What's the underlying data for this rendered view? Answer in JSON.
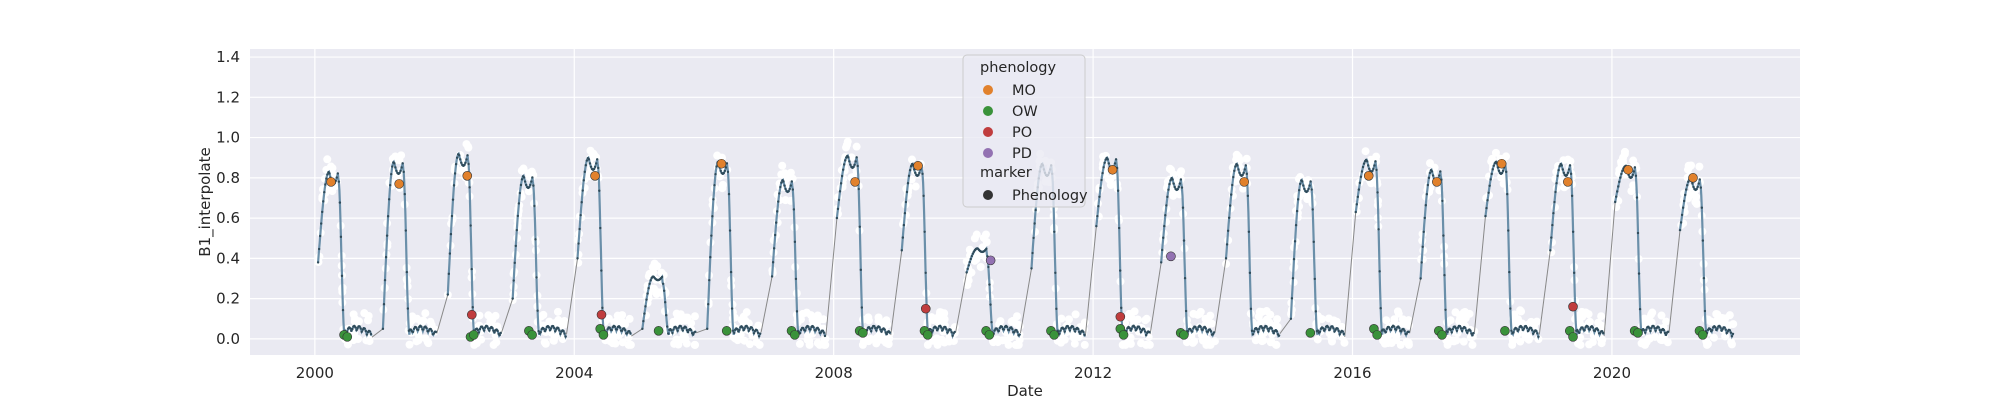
{
  "chart_data": {
    "type": "line",
    "xlabel": "Date",
    "ylabel": "B1_interpolate",
    "xlim": [
      1999.0,
      2022.9
    ],
    "ylim": [
      -0.08,
      1.44
    ],
    "x_ticks": [
      2000,
      2004,
      2008,
      2012,
      2016,
      2020
    ],
    "y_ticks": [
      0.0,
      0.2,
      0.4,
      0.6,
      0.8,
      1.0,
      1.2,
      1.4
    ],
    "grid": true,
    "background": "#eaeaf2",
    "line_color": "#6a8fa9",
    "marker_dot_color": "#2f4b5a",
    "connector_color": "#888888",
    "scatter_color": "#ffffff",
    "legend": {
      "placement": "top-center",
      "title_hue": "phenology",
      "title_marker": "marker",
      "hue_entries": [
        {
          "label": "MO",
          "color": "#e1812c"
        },
        {
          "label": "OW",
          "color": "#3a923a"
        },
        {
          "label": "PO",
          "color": "#c03d3e"
        },
        {
          "label": "PD",
          "color": "#9372b2"
        }
      ],
      "marker_entries": [
        {
          "label": "Phenology",
          "color": "#333333"
        }
      ]
    },
    "seasons": [
      {
        "year": 2000,
        "start": 0.38,
        "peak": 0.83
      },
      {
        "year": 2001,
        "start": 0.05,
        "peak": 0.88
      },
      {
        "year": 2002,
        "start": 0.22,
        "peak": 0.92
      },
      {
        "year": 2003,
        "start": 0.2,
        "peak": 0.81
      },
      {
        "year": 2004,
        "start": 0.4,
        "peak": 0.9
      },
      {
        "year": 2005,
        "start": 0.05,
        "peak": 0.31
      },
      {
        "year": 2006,
        "start": 0.05,
        "peak": 0.88
      },
      {
        "year": 2007,
        "start": 0.31,
        "peak": 0.79
      },
      {
        "year": 2008,
        "start": 0.6,
        "peak": 0.91
      },
      {
        "year": 2009,
        "start": 0.44,
        "peak": 0.87
      },
      {
        "year": 2010,
        "start": 0.33,
        "peak": 0.45
      },
      {
        "year": 2011,
        "start": 0.35,
        "peak": 0.87
      },
      {
        "year": 2012,
        "start": 0.56,
        "peak": 0.9
      },
      {
        "year": 2013,
        "start": 0.38,
        "peak": 0.8
      },
      {
        "year": 2014,
        "start": 0.4,
        "peak": 0.87
      },
      {
        "year": 2015,
        "start": 0.1,
        "peak": 0.79
      },
      {
        "year": 2016,
        "start": 0.63,
        "peak": 0.89
      },
      {
        "year": 2017,
        "start": 0.3,
        "peak": 0.84
      },
      {
        "year": 2018,
        "start": 0.61,
        "peak": 0.88
      },
      {
        "year": 2019,
        "start": 0.44,
        "peak": 0.87
      },
      {
        "year": 2020,
        "start": 0.68,
        "peak": 0.86
      },
      {
        "year": 2021,
        "start": 0.54,
        "peak": 0.8
      }
    ],
    "phenology_points": {
      "MO": [
        [
          2000.25,
          0.78
        ],
        [
          2001.3,
          0.77
        ],
        [
          2002.35,
          0.81
        ],
        [
          2004.32,
          0.81
        ],
        [
          2006.27,
          0.87
        ],
        [
          2008.33,
          0.78
        ],
        [
          2009.3,
          0.86
        ],
        [
          2012.3,
          0.84
        ],
        [
          2014.33,
          0.78
        ],
        [
          2016.25,
          0.81
        ],
        [
          2017.3,
          0.78
        ],
        [
          2018.3,
          0.87
        ],
        [
          2019.32,
          0.78
        ],
        [
          2020.25,
          0.84
        ],
        [
          2021.25,
          0.8
        ]
      ],
      "OW": [
        [
          2000.45,
          0.02
        ],
        [
          2000.5,
          0.01
        ],
        [
          2002.4,
          0.01
        ],
        [
          2002.45,
          0.02
        ],
        [
          2003.3,
          0.04
        ],
        [
          2003.35,
          0.02
        ],
        [
          2004.4,
          0.05
        ],
        [
          2004.45,
          0.02
        ],
        [
          2005.3,
          0.04
        ],
        [
          2006.35,
          0.04
        ],
        [
          2007.35,
          0.04
        ],
        [
          2007.4,
          0.02
        ],
        [
          2008.4,
          0.04
        ],
        [
          2008.45,
          0.03
        ],
        [
          2009.4,
          0.04
        ],
        [
          2009.45,
          0.02
        ],
        [
          2010.35,
          0.04
        ],
        [
          2010.4,
          0.02
        ],
        [
          2011.35,
          0.04
        ],
        [
          2011.4,
          0.02
        ],
        [
          2012.42,
          0.05
        ],
        [
          2012.47,
          0.02
        ],
        [
          2013.35,
          0.03
        ],
        [
          2013.4,
          0.02
        ],
        [
          2015.35,
          0.03
        ],
        [
          2016.33,
          0.05
        ],
        [
          2016.38,
          0.02
        ],
        [
          2017.33,
          0.04
        ],
        [
          2017.38,
          0.02
        ],
        [
          2018.35,
          0.04
        ],
        [
          2019.35,
          0.04
        ],
        [
          2019.4,
          0.01
        ],
        [
          2020.35,
          0.04
        ],
        [
          2020.4,
          0.03
        ],
        [
          2021.35,
          0.04
        ],
        [
          2021.4,
          0.02
        ]
      ],
      "PO": [
        [
          2002.42,
          0.12
        ],
        [
          2004.42,
          0.12
        ],
        [
          2009.42,
          0.15
        ],
        [
          2012.42,
          0.11
        ],
        [
          2019.4,
          0.16
        ]
      ],
      "PD": [
        [
          2010.42,
          0.39
        ],
        [
          2013.2,
          0.41
        ]
      ]
    }
  }
}
